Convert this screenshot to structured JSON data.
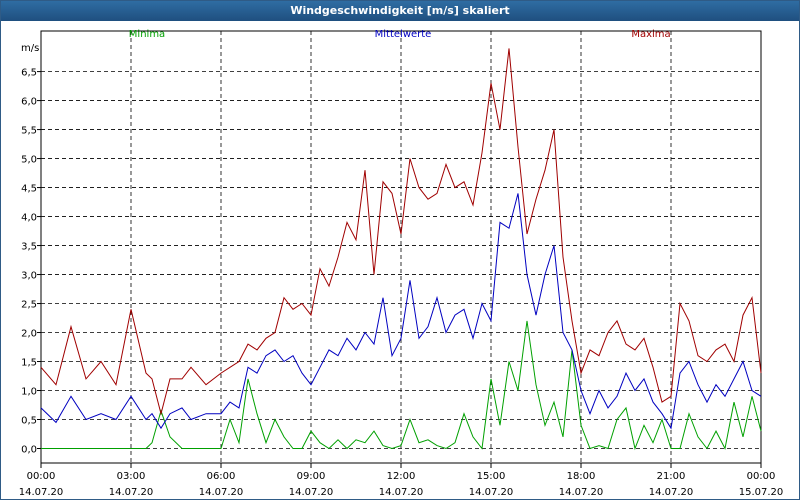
{
  "window": {
    "title": "Windgeschwindigkeit [m/s] skaliert"
  },
  "chart_data": {
    "type": "line",
    "title": "Windgeschwindigkeit [m/s] skaliert",
    "ylabel": "m/s",
    "xlabel": "",
    "ylim": [
      -0.25,
      7.2
    ],
    "xlim": [
      0,
      24
    ],
    "grid": true,
    "y_ticks": [
      "0,0",
      "0,5",
      "1,0",
      "1,5",
      "2,0",
      "2,5",
      "3,0",
      "3,5",
      "4,0",
      "4,5",
      "5,0",
      "5,5",
      "6,0",
      "6,5"
    ],
    "y_tick_values": [
      0,
      0.5,
      1,
      1.5,
      2,
      2.5,
      3,
      3.5,
      4,
      4.5,
      5,
      5.5,
      6,
      6.5
    ],
    "x_ticks": [
      {
        "time": "00:00",
        "date": "14.07.20",
        "hour": 0
      },
      {
        "time": "03:00",
        "date": "14.07.20",
        "hour": 3
      },
      {
        "time": "06:00",
        "date": "14.07.20",
        "hour": 6
      },
      {
        "time": "09:00",
        "date": "14.07.20",
        "hour": 9
      },
      {
        "time": "12:00",
        "date": "14.07.20",
        "hour": 12
      },
      {
        "time": "15:00",
        "date": "14.07.20",
        "hour": 15
      },
      {
        "time": "18:00",
        "date": "14.07.20",
        "hour": 18
      },
      {
        "time": "21:00",
        "date": "14.07.20",
        "hour": 21
      },
      {
        "time": "00:00",
        "date": "15.07.20",
        "hour": 24
      }
    ],
    "series": [
      {
        "name": "Minima",
        "color": "#00a000",
        "x": [
          0,
          0.5,
          1,
          1.5,
          2,
          2.5,
          3,
          3.5,
          3.7,
          4,
          4.3,
          4.7,
          5,
          5.5,
          6,
          6.3,
          6.6,
          6.9,
          7.2,
          7.5,
          7.8,
          8.1,
          8.4,
          8.7,
          9,
          9.3,
          9.6,
          9.9,
          10.2,
          10.5,
          10.8,
          11.1,
          11.4,
          11.7,
          12,
          12.3,
          12.6,
          12.9,
          13.2,
          13.5,
          13.8,
          14.1,
          14.4,
          14.7,
          15,
          15.3,
          15.6,
          15.9,
          16.2,
          16.5,
          16.8,
          17.1,
          17.4,
          17.7,
          18,
          18.3,
          18.6,
          18.9,
          19.2,
          19.5,
          19.8,
          20.1,
          20.4,
          20.7,
          21,
          21.3,
          21.6,
          21.9,
          22.2,
          22.5,
          22.8,
          23.1,
          23.4,
          23.7,
          24
        ],
        "values": [
          0,
          0,
          0,
          0,
          0,
          0,
          0,
          0,
          0.1,
          0.65,
          0.2,
          0,
          0,
          0,
          0,
          0.5,
          0.1,
          1.2,
          0.6,
          0.1,
          0.5,
          0.2,
          0,
          0,
          0.3,
          0.1,
          0,
          0.15,
          0,
          0.15,
          0.1,
          0.3,
          0.05,
          0,
          0.05,
          0.5,
          0.1,
          0.15,
          0.05,
          0,
          0.1,
          0.6,
          0.2,
          0,
          1.2,
          0.4,
          1.5,
          1,
          2.2,
          1.1,
          0.4,
          0.8,
          0.2,
          1.7,
          0.4,
          0,
          0.05,
          0,
          0.5,
          0.7,
          0,
          0.4,
          0.1,
          0.5,
          0,
          0,
          0.6,
          0.2,
          0,
          0.3,
          0,
          0.8,
          0.2,
          0.9,
          0.3
        ]
      },
      {
        "name": "Mittelwerte",
        "color": "#0000c0",
        "x": [
          0,
          0.5,
          1,
          1.5,
          2,
          2.5,
          3,
          3.5,
          3.7,
          4,
          4.3,
          4.7,
          5,
          5.5,
          6,
          6.3,
          6.6,
          6.9,
          7.2,
          7.5,
          7.8,
          8.1,
          8.4,
          8.7,
          9,
          9.3,
          9.6,
          9.9,
          10.2,
          10.5,
          10.8,
          11.1,
          11.4,
          11.7,
          12,
          12.3,
          12.6,
          12.9,
          13.2,
          13.5,
          13.8,
          14.1,
          14.4,
          14.7,
          15,
          15.3,
          15.6,
          15.9,
          16.2,
          16.5,
          16.8,
          17.1,
          17.4,
          17.7,
          18,
          18.3,
          18.6,
          18.9,
          19.2,
          19.5,
          19.8,
          20.1,
          20.4,
          20.7,
          21,
          21.3,
          21.6,
          21.9,
          22.2,
          22.5,
          22.8,
          23.1,
          23.4,
          23.7,
          24
        ],
        "values": [
          0.7,
          0.45,
          0.9,
          0.5,
          0.6,
          0.5,
          0.9,
          0.5,
          0.6,
          0.35,
          0.6,
          0.7,
          0.5,
          0.6,
          0.6,
          0.8,
          0.7,
          1.4,
          1.3,
          1.6,
          1.7,
          1.5,
          1.6,
          1.3,
          1.1,
          1.4,
          1.7,
          1.6,
          1.9,
          1.7,
          2.0,
          1.8,
          2.6,
          1.6,
          1.9,
          2.9,
          1.9,
          2.1,
          2.6,
          2.0,
          2.3,
          2.4,
          1.9,
          2.5,
          2.2,
          3.9,
          3.8,
          4.4,
          3.0,
          2.3,
          3.0,
          3.5,
          2.0,
          1.7,
          1.0,
          0.6,
          1.0,
          0.7,
          0.9,
          1.3,
          1.0,
          1.2,
          0.8,
          0.6,
          0.35,
          1.3,
          1.5,
          1.1,
          0.8,
          1.1,
          0.9,
          1.2,
          1.5,
          1.0,
          0.9
        ]
      },
      {
        "name": "Maxima",
        "color": "#a00000",
        "x": [
          0,
          0.5,
          1,
          1.5,
          2,
          2.5,
          3,
          3.5,
          3.7,
          4,
          4.3,
          4.7,
          5,
          5.5,
          6,
          6.3,
          6.6,
          6.9,
          7.2,
          7.5,
          7.8,
          8.1,
          8.4,
          8.7,
          9,
          9.3,
          9.6,
          9.9,
          10.2,
          10.5,
          10.8,
          11.1,
          11.4,
          11.7,
          12,
          12.3,
          12.6,
          12.9,
          13.2,
          13.5,
          13.8,
          14.1,
          14.4,
          14.7,
          15,
          15.3,
          15.6,
          15.9,
          16.2,
          16.5,
          16.8,
          17.1,
          17.4,
          17.7,
          18,
          18.3,
          18.6,
          18.9,
          19.2,
          19.5,
          19.8,
          20.1,
          20.4,
          20.7,
          21,
          21.3,
          21.6,
          21.9,
          22.2,
          22.5,
          22.8,
          23.1,
          23.4,
          23.7,
          24
        ],
        "values": [
          1.4,
          1.1,
          2.1,
          1.2,
          1.5,
          1.1,
          2.4,
          1.3,
          1.2,
          0.6,
          1.2,
          1.2,
          1.4,
          1.1,
          1.3,
          1.4,
          1.5,
          1.8,
          1.7,
          1.9,
          2.0,
          2.6,
          2.4,
          2.5,
          2.3,
          3.1,
          2.8,
          3.3,
          3.9,
          3.6,
          4.8,
          3.0,
          4.6,
          4.4,
          3.7,
          5.0,
          4.5,
          4.3,
          4.4,
          4.9,
          4.5,
          4.6,
          4.2,
          5.1,
          6.3,
          5.5,
          6.9,
          5.2,
          3.7,
          4.3,
          4.8,
          5.5,
          3.3,
          2.2,
          1.3,
          1.7,
          1.6,
          2.0,
          2.2,
          1.8,
          1.7,
          1.9,
          1.4,
          0.8,
          0.9,
          2.5,
          2.2,
          1.6,
          1.5,
          1.7,
          1.8,
          1.5,
          2.3,
          2.6,
          1.3
        ]
      }
    ]
  }
}
